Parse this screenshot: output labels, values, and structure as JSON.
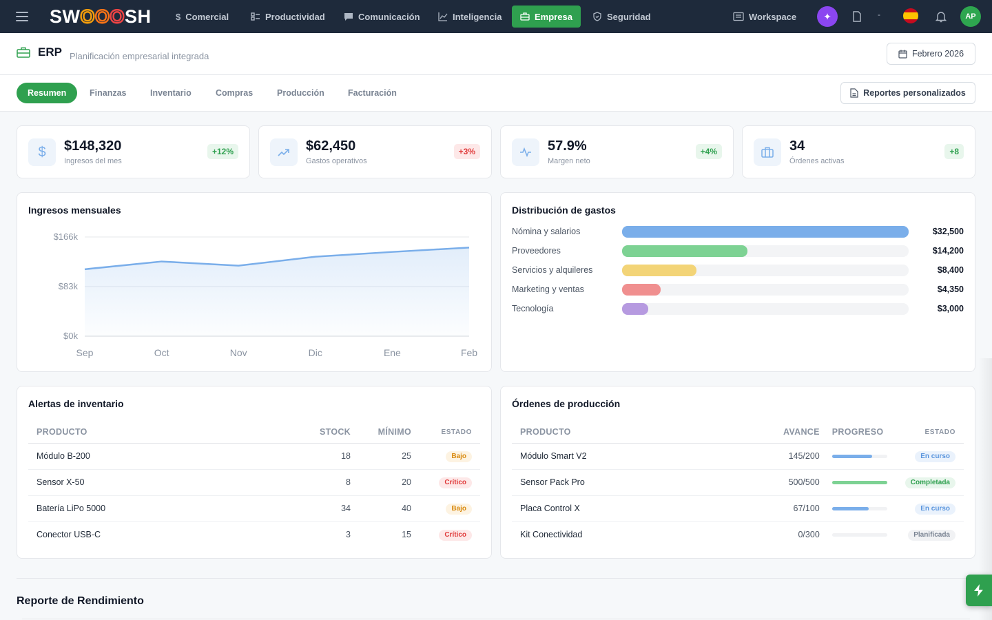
{
  "brand": {
    "pre": "SW",
    "o1": "O",
    "o2": "O",
    "o3": "O",
    "post": "SH"
  },
  "nav": [
    {
      "label": "Comercial",
      "icon": "dollar-icon"
    },
    {
      "label": "Productividad",
      "icon": "checklist-icon"
    },
    {
      "label": "Comunicación",
      "icon": "chat-icon"
    },
    {
      "label": "Inteligencia",
      "icon": "trend-icon"
    },
    {
      "label": "Empresa",
      "icon": "briefcase-icon",
      "active": true
    },
    {
      "label": "Seguridad",
      "icon": "shield-icon"
    }
  ],
  "topbar": {
    "workspace": "Workspace",
    "user_initials": "AP",
    "dash": "-"
  },
  "page": {
    "title": "ERP",
    "subtitle": "Planificación empresarial integrada",
    "period": "Febrero 2026"
  },
  "tabs": [
    "Resumen",
    "Finanzas",
    "Inventario",
    "Compras",
    "Producción",
    "Facturación"
  ],
  "active_tab": "Resumen",
  "custom_reports": "Reportes personalizados",
  "kpis": [
    {
      "value": "$148,320",
      "label": "Ingresos del mes",
      "delta": "+12%",
      "trend": "up",
      "icon": "dollar-icon"
    },
    {
      "value": "$62,450",
      "label": "Gastos operativos",
      "delta": "+3%",
      "trend": "bad",
      "icon": "trend-up-icon"
    },
    {
      "value": "57.9%",
      "label": "Margen neto",
      "delta": "+4%",
      "trend": "up",
      "icon": "pulse-icon"
    },
    {
      "value": "34",
      "label": "Órdenes activas",
      "delta": "+8",
      "trend": "up",
      "icon": "briefcase-icon"
    }
  ],
  "revenue_card": {
    "title": "Ingresos mensuales"
  },
  "chart_data": {
    "type": "area",
    "title": "Ingresos mensuales",
    "categories": [
      "Sep",
      "Oct",
      "Nov",
      "Dic",
      "Ene",
      "Feb"
    ],
    "values": [
      112000,
      125000,
      118000,
      133000,
      141000,
      148320
    ],
    "ylim": [
      0,
      166000
    ],
    "yticks": [
      {
        "v": 0,
        "label": "$0k"
      },
      {
        "v": 83000,
        "label": "$83k"
      },
      {
        "v": 166000,
        "label": "$166k"
      }
    ],
    "color": "#7aaeea"
  },
  "expenses": {
    "title": "Distribución de gastos",
    "max": 32500,
    "items": [
      {
        "name": "Nómina y salarios",
        "value": 32500,
        "label": "$32,500",
        "color": "#7aaeea"
      },
      {
        "name": "Proveedores",
        "value": 14200,
        "label": "$14,200",
        "color": "#7dd293"
      },
      {
        "name": "Servicios y alquileres",
        "value": 8400,
        "label": "$8,400",
        "color": "#f3d477"
      },
      {
        "name": "Marketing y ventas",
        "value": 4350,
        "label": "$4,350",
        "color": "#f08f8f"
      },
      {
        "name": "Tecnología",
        "value": 3000,
        "label": "$3,000",
        "color": "#b69ae0"
      }
    ]
  },
  "inventory": {
    "title": "Alertas de inventario",
    "headers": [
      "PRODUCTO",
      "STOCK",
      "MÍNIMO",
      "ESTADO"
    ],
    "rows": [
      {
        "product": "Módulo B-200",
        "stock": "18",
        "min": "25",
        "status": "Bajo",
        "kind": "bajo"
      },
      {
        "product": "Sensor X-50",
        "stock": "8",
        "min": "20",
        "status": "Crítico",
        "kind": "crit"
      },
      {
        "product": "Batería LiPo 5000",
        "stock": "34",
        "min": "40",
        "status": "Bajo",
        "kind": "bajo"
      },
      {
        "product": "Conector USB-C",
        "stock": "3",
        "min": "15",
        "status": "Crítico",
        "kind": "crit"
      }
    ]
  },
  "production": {
    "title": "Órdenes de producción",
    "headers": [
      "PRODUCTO",
      "AVANCE",
      "PROGRESO",
      "ESTADO"
    ],
    "rows": [
      {
        "product": "Módulo Smart V2",
        "advance": "145/200",
        "progress": 0.725,
        "status": "En curso",
        "kind": "curso",
        "color": "#7aaeea"
      },
      {
        "product": "Sensor Pack Pro",
        "advance": "500/500",
        "progress": 1.0,
        "status": "Completada",
        "kind": "comp",
        "color": "#7dd293"
      },
      {
        "product": "Placa Control X",
        "advance": "67/100",
        "progress": 0.67,
        "status": "En curso",
        "kind": "curso",
        "color": "#7aaeea"
      },
      {
        "product": "Kit Conectividad",
        "advance": "0/300",
        "progress": 0.0,
        "status": "Planificada",
        "kind": "plan",
        "color": "#7aaeea"
      }
    ]
  },
  "report": {
    "title": "Reporte de Rendimiento"
  }
}
